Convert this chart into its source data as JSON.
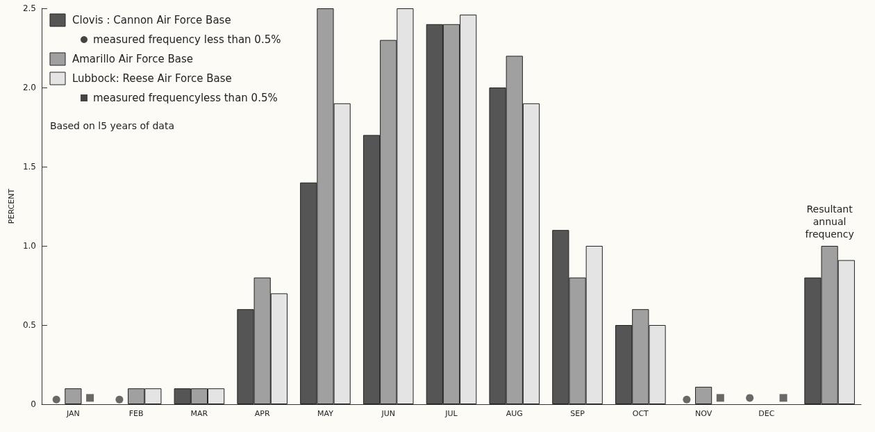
{
  "chart_data": {
    "type": "bar",
    "categories": [
      "JAN",
      "FEB",
      "MAR",
      "APR",
      "MAY",
      "JUN",
      "JUL",
      "AUG",
      "SEP",
      "OCT",
      "NOV",
      "DEC",
      null
    ],
    "series": [
      {
        "name": "Clovis : Cannon Air Force Base",
        "color": "#555555",
        "values": [
          null,
          null,
          0.1,
          0.6,
          1.4,
          1.7,
          2.4,
          2.0,
          1.1,
          0.5,
          null,
          null,
          0.8
        ]
      },
      {
        "name": "measured frequency less than 0.5%",
        "type": "scatter",
        "marker": "circle",
        "color": "#444444",
        "values": [
          0.03,
          0.03,
          null,
          null,
          null,
          null,
          null,
          null,
          null,
          null,
          0.03,
          0.04,
          null
        ]
      },
      {
        "name": "Amarillo Air Force Base",
        "color": "#a0a0a0",
        "values": [
          0.1,
          0.1,
          0.1,
          0.8,
          2.5,
          2.3,
          2.4,
          2.2,
          0.8,
          0.6,
          0.11,
          null,
          1.0
        ]
      },
      {
        "name": "Lubbock: Reese Air Force Base",
        "color": "#e4e4e4",
        "values": [
          null,
          0.1,
          0.1,
          0.7,
          1.9,
          2.5,
          2.46,
          1.9,
          1.0,
          0.5,
          null,
          null,
          0.91
        ]
      },
      {
        "name": "measured frequencyless than 0.5%",
        "type": "scatter",
        "marker": "square",
        "color": "#444444",
        "values": [
          0.04,
          null,
          null,
          null,
          null,
          null,
          null,
          null,
          null,
          null,
          0.04,
          0.04,
          null
        ]
      }
    ],
    "ylabel": "PERCENT",
    "ylim": [
      0,
      2.5
    ],
    "yticks": [
      0,
      0.5,
      {
        "value": 1,
        "label": "1.0"
      },
      1.5,
      {
        "value": 2,
        "label": "2.0"
      },
      2.5
    ],
    "legend": "top left",
    "annotations": [
      "Based on l5 years of data",
      "Resultant annual frequency"
    ]
  }
}
